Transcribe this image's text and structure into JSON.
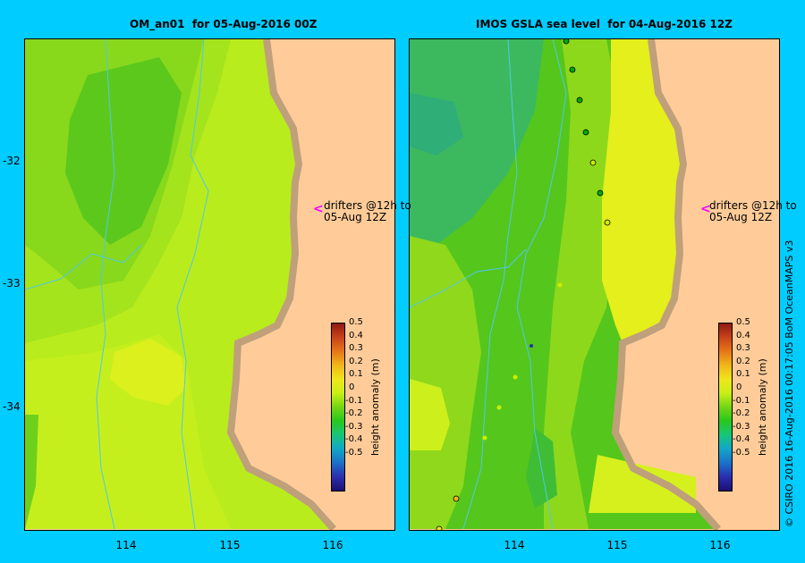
{
  "panels": [
    {
      "title": "OM_an01  for 05-Aug-2016 00Z",
      "note": [
        "drifters @12h to",
        "05-Aug 12Z"
      ]
    },
    {
      "title": "IMOS GSLA sea level  for 04-Aug-2016 12Z",
      "note": [
        "drifters @12h to",
        "05-Aug 12Z"
      ]
    }
  ],
  "axes": {
    "lat_ticks": [
      "-32",
      "-33",
      "-34"
    ],
    "lon_ticks": [
      "114",
      "115",
      "116"
    ]
  },
  "colorbar": {
    "label": "height anomaly (m)",
    "ticks": [
      "0.5",
      "0.4",
      "0.3",
      "0.2",
      "0.1",
      "0",
      "-0.1",
      "-0.2",
      "-0.3",
      "-0.4",
      "-0.5"
    ],
    "colors": [
      "#1a0e73",
      "#2b2fb0",
      "#1b71c9",
      "#12a6c8",
      "#17c57a",
      "#28c81c",
      "#74d614",
      "#c9ef16",
      "#efe61b",
      "#f0b617",
      "#e77718",
      "#c8421a",
      "#8f1a12"
    ]
  },
  "copyright": "© CSIRO 2016   16-Aug-2016 00:17:05 BoM OceanMAPS v3",
  "colors": {
    "land": "#ffcc99",
    "coast": "#bfa07a",
    "background": "#00ccff",
    "drifter_arrow": "#ff00ff"
  }
}
